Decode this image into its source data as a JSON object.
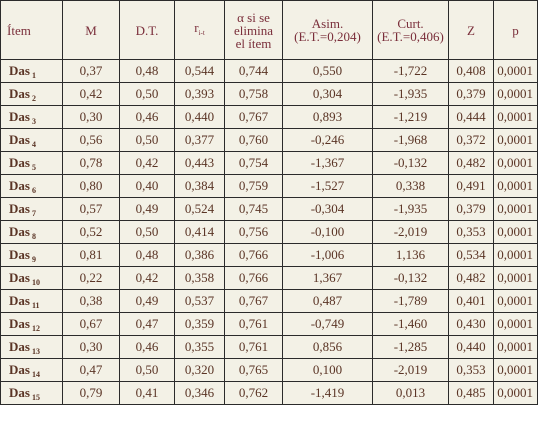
{
  "table": {
    "headers": {
      "item": "Ítem",
      "m": "M",
      "dt": "D.T.",
      "r": "r",
      "r_sub": "i-t",
      "alpha_l1": "α si se",
      "alpha_l2": "elimina",
      "alpha_l3": "el ítem",
      "asim_l1": "Asim.",
      "asim_l2": "(E.T.=0,204)",
      "curt_l1": "Curt.",
      "curt_l2": "(E.T.=0,406)",
      "z": "Z",
      "p": "p"
    },
    "rows": [
      {
        "name": "Das",
        "sub": "1",
        "m": "0,37",
        "dt": "0,48",
        "r": "0,544",
        "alpha": "0,744",
        "asim": "0,550",
        "curt": "-1,722",
        "z": "0,408",
        "p": "0,0001"
      },
      {
        "name": "Das",
        "sub": "2",
        "m": "0,42",
        "dt": "0,50",
        "r": "0,393",
        "alpha": "0,758",
        "asim": "0,304",
        "curt": "-1,935",
        "z": "0,379",
        "p": "0,0001"
      },
      {
        "name": "Das",
        "sub": "3",
        "m": "0,30",
        "dt": "0,46",
        "r": "0,440",
        "alpha": "0,767",
        "asim": "0,893",
        "curt": "-1,219",
        "z": "0,444",
        "p": "0,0001"
      },
      {
        "name": "Das",
        "sub": "4",
        "m": "0,56",
        "dt": "0,50",
        "r": "0,377",
        "alpha": "0,760",
        "asim": "-0,246",
        "curt": "-1,968",
        "z": "0,372",
        "p": "0,0001"
      },
      {
        "name": "Das",
        "sub": "5",
        "m": "0,78",
        "dt": "0,42",
        "r": "0,443",
        "alpha": "0,754",
        "asim": "-1,367",
        "curt": "-0,132",
        "z": "0,482",
        "p": "0,0001"
      },
      {
        "name": "Das",
        "sub": "6",
        "m": "0,80",
        "dt": "0,40",
        "r": "0,384",
        "alpha": "0,759",
        "asim": "-1,527",
        "curt": "0,338",
        "z": "0,491",
        "p": "0,0001"
      },
      {
        "name": "Das",
        "sub": "7",
        "m": "0,57",
        "dt": "0,49",
        "r": "0,524",
        "alpha": "0,745",
        "asim": "-0,304",
        "curt": "-1,935",
        "z": "0,379",
        "p": "0,0001"
      },
      {
        "name": "Das",
        "sub": "8",
        "m": "0,52",
        "dt": "0,50",
        "r": "0,414",
        "alpha": "0,756",
        "asim": "-0,100",
        "curt": "-2,019",
        "z": "0,353",
        "p": "0,0001"
      },
      {
        "name": "Das",
        "sub": "9",
        "m": "0,81",
        "dt": "0,48",
        "r": "0,386",
        "alpha": "0,766",
        "asim": "-1,006",
        "curt": "1,136",
        "z": "0,534",
        "p": "0,0001"
      },
      {
        "name": "Das",
        "sub": "10",
        "m": "0,22",
        "dt": "0,42",
        "r": "0,358",
        "alpha": "0,766",
        "asim": "1,367",
        "curt": "-0,132",
        "z": "0,482",
        "p": "0,0001"
      },
      {
        "name": "Das",
        "sub": "11",
        "m": "0,38",
        "dt": "0,49",
        "r": "0,537",
        "alpha": "0,767",
        "asim": "0,487",
        "curt": "-1,789",
        "z": "0,401",
        "p": "0,0001"
      },
      {
        "name": "Das",
        "sub": "12",
        "m": "0,67",
        "dt": "0,47",
        "r": "0,359",
        "alpha": "0,761",
        "asim": "-0,749",
        "curt": "-1,460",
        "z": "0,430",
        "p": "0,0001"
      },
      {
        "name": "Das",
        "sub": "13",
        "m": "0,30",
        "dt": "0,46",
        "r": "0,355",
        "alpha": "0,761",
        "asim": "0,856",
        "curt": "-1,285",
        "z": "0,440",
        "p": "0,0001"
      },
      {
        "name": "Das",
        "sub": "14",
        "m": "0,47",
        "dt": "0,50",
        "r": "0,320",
        "alpha": "0,765",
        "asim": "0,100",
        "curt": "-2,019",
        "z": "0,353",
        "p": "0,0001"
      },
      {
        "name": "Das",
        "sub": "15",
        "m": "0,79",
        "dt": "0,41",
        "r": "0,346",
        "alpha": "0,762",
        "asim": "-1,419",
        "curt": "0,013",
        "z": "0,485",
        "p": "0,0001"
      }
    ]
  }
}
